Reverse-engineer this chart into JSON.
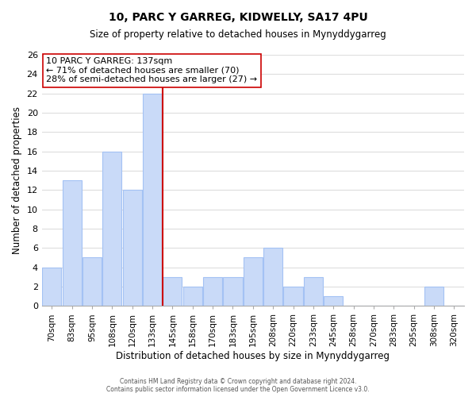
{
  "title": "10, PARC Y GARREG, KIDWELLY, SA17 4PU",
  "subtitle": "Size of property relative to detached houses in Mynyddygarreg",
  "xlabel": "Distribution of detached houses by size in Mynyddygarreg",
  "ylabel": "Number of detached properties",
  "bar_labels": [
    "70sqm",
    "83sqm",
    "95sqm",
    "108sqm",
    "120sqm",
    "133sqm",
    "145sqm",
    "158sqm",
    "170sqm",
    "183sqm",
    "195sqm",
    "208sqm",
    "220sqm",
    "233sqm",
    "245sqm",
    "258sqm",
    "270sqm",
    "283sqm",
    "295sqm",
    "308sqm",
    "320sqm"
  ],
  "bar_values": [
    4,
    13,
    5,
    16,
    12,
    22,
    3,
    2,
    3,
    3,
    5,
    6,
    2,
    3,
    1,
    0,
    0,
    0,
    0,
    2,
    0
  ],
  "bar_color": "#c9daf8",
  "bar_edge_color": "#a4c2f4",
  "vline_color": "#cc0000",
  "annotation_line0": "10 PARC Y GARREG: 137sqm",
  "annotation_line1": "← 71% of detached houses are smaller (70)",
  "annotation_line2": "28% of semi-detached houses are larger (27) →",
  "annotation_box_color": "#ffffff",
  "annotation_box_edge": "#cc0000",
  "ylim": [
    0,
    26
  ],
  "yticks": [
    0,
    2,
    4,
    6,
    8,
    10,
    12,
    14,
    16,
    18,
    20,
    22,
    24,
    26
  ],
  "footer1": "Contains HM Land Registry data © Crown copyright and database right 2024.",
  "footer2": "Contains public sector information licensed under the Open Government Licence v3.0.",
  "bg_color": "#ffffff",
  "grid_color": "#dddddd"
}
